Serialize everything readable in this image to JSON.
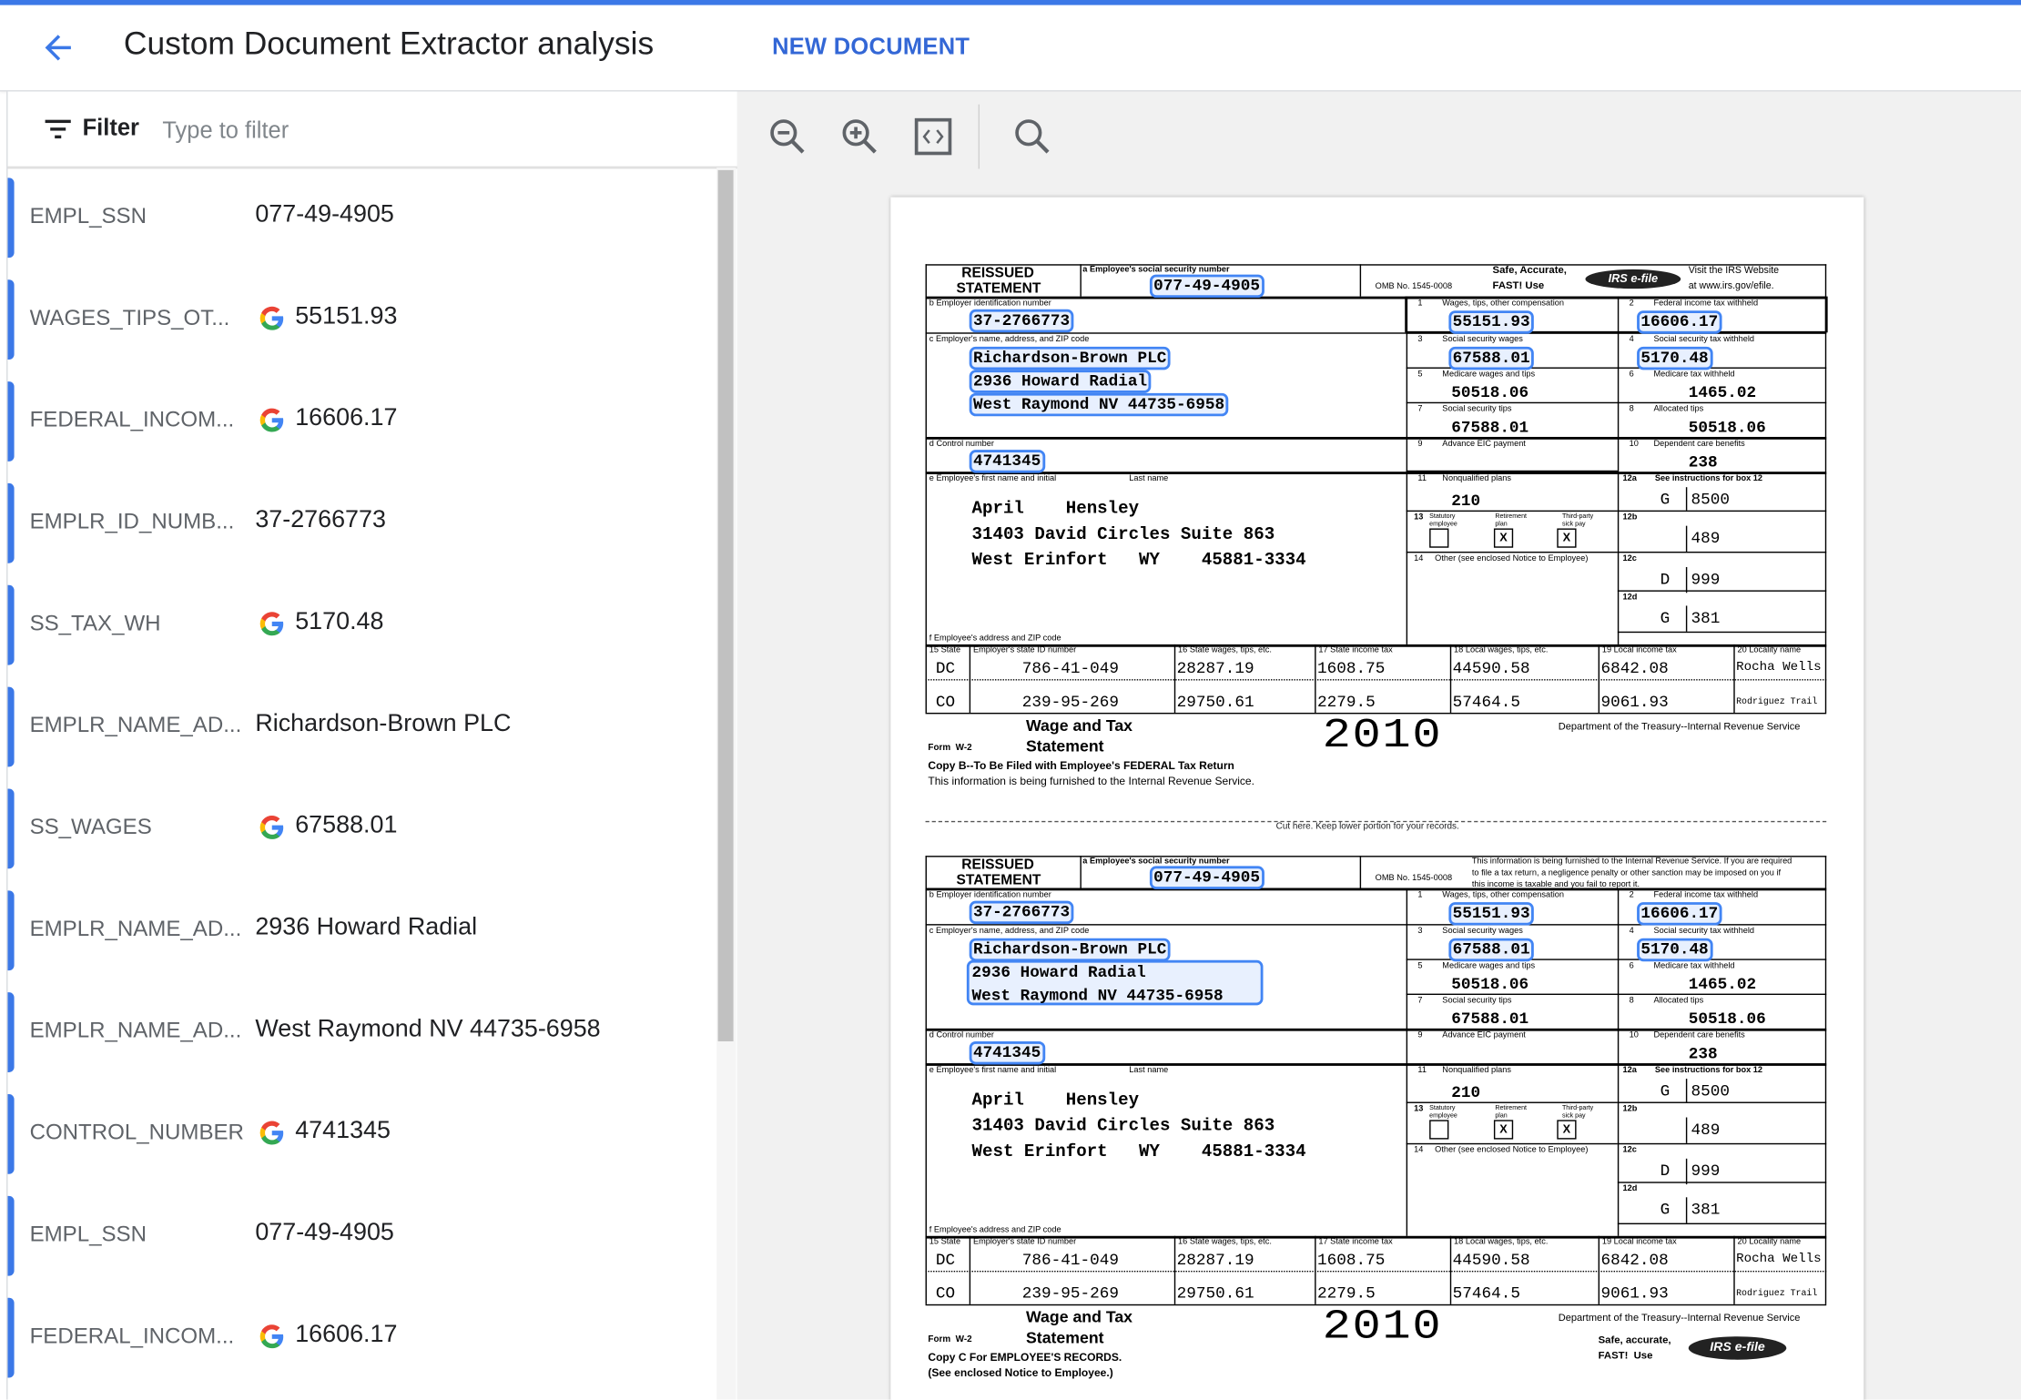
{
  "header": {
    "title": "Custom Document Extractor analysis",
    "new_document_label": "NEW DOCUMENT"
  },
  "filter": {
    "label": "Filter",
    "placeholder": "Type to filter",
    "value": ""
  },
  "colors": {
    "accent": "#3b78e7",
    "link": "#3367d6",
    "highlight_border": "#4285f4",
    "highlight_fill": "#e8f0fe"
  },
  "entities": [
    {
      "label": "EMPL_SSN",
      "value": "077-49-4905",
      "google_icon": false
    },
    {
      "label": "WAGES_TIPS_OT...",
      "value": "55151.93",
      "google_icon": true
    },
    {
      "label": "FEDERAL_INCOM...",
      "value": "16606.17",
      "google_icon": true
    },
    {
      "label": "EMPLR_ID_NUMB...",
      "value": "37-2766773",
      "google_icon": false
    },
    {
      "label": "SS_TAX_WH",
      "value": "5170.48",
      "google_icon": true
    },
    {
      "label": "EMPLR_NAME_AD...",
      "value": "Richardson-Brown PLC",
      "google_icon": false
    },
    {
      "label": "SS_WAGES",
      "value": "67588.01",
      "google_icon": true
    },
    {
      "label": "EMPLR_NAME_AD...",
      "value": "2936 Howard Radial",
      "google_icon": false
    },
    {
      "label": "EMPLR_NAME_AD...",
      "value": "West Raymond NV 44735-6958",
      "google_icon": false
    },
    {
      "label": "CONTROL_NUMBER",
      "value": "4741345",
      "google_icon": true
    },
    {
      "label": "EMPL_SSN",
      "value": "077-49-4905",
      "google_icon": false
    },
    {
      "label": "FEDERAL_INCOM...",
      "value": "16606.17",
      "google_icon": true
    }
  ],
  "toolbar": {
    "icons": [
      "zoom-out-icon",
      "zoom-in-icon",
      "fit-page-icon",
      "search-icon"
    ]
  },
  "form": {
    "reissued_1": "REISSUED",
    "reissued_2": "STATEMENT",
    "ssn_label": "a  Employee's social security number",
    "ssn": "077-49-4905",
    "omb": "OMB No. 1545-0008",
    "safe": "Safe, Accurate,",
    "fast": "FAST!  Use",
    "efile_logo": "IRS e-file",
    "visit_1": "Visit the IRS Website",
    "visit_2": "at www.irs.gov/efile.",
    "notice": [
      "This information is being furnished to the Internal Revenue Service.  If you are required",
      "to file a tax return, a negligence penalty or other sanction may be imposed on you if",
      "this income is taxable and you fail to report it."
    ],
    "b_label": "b  Employer identification number",
    "ein": "37-2766773",
    "c_label": "c  Employer's name, address, and ZIP code",
    "employer": [
      "Richardson-Brown PLC",
      "2936 Howard Radial",
      "West Raymond   NV    44735-6958"
    ],
    "d_label": "d  Control number",
    "control": "4741345",
    "e_label": "e  Employee's first name and initial",
    "last_name_label": "Last name",
    "employee": [
      "April    Hensley",
      "31403 David Circles Suite 863",
      "West Erinfort   WY    45881-3334"
    ],
    "f_label": "f  Employee's address and ZIP code",
    "boxes": [
      {
        "num": "1",
        "label": "Wages, tips, other compensation",
        "value": "55151.93"
      },
      {
        "num": "2",
        "label": "Federal income tax withheld",
        "value": "16606.17"
      },
      {
        "num": "3",
        "label": "Social security wages",
        "value": "67588.01"
      },
      {
        "num": "4",
        "label": "Social security tax withheld",
        "value": "5170.48"
      },
      {
        "num": "5",
        "label": "Medicare wages and tips",
        "value": "50518.06"
      },
      {
        "num": "6",
        "label": "Medicare tax withheld",
        "value": "1465.02"
      },
      {
        "num": "7",
        "label": "Social security tips",
        "value": "67588.01"
      },
      {
        "num": "8",
        "label": "Allocated tips",
        "value": "50518.06"
      },
      {
        "num": "9",
        "label": "Advance EIC payment",
        "value": ""
      },
      {
        "num": "10",
        "label": "Dependent care benefits",
        "value": "238"
      },
      {
        "num": "11",
        "label": "Nonqualified plans",
        "value": "210"
      }
    ],
    "box12": [
      {
        "num": "12a",
        "title": "See instructions for box 12",
        "code": "G",
        "value": "8500"
      },
      {
        "num": "12b",
        "title": "",
        "code": "",
        "value": "489"
      },
      {
        "num": "12c",
        "title": "",
        "code": "D",
        "value": "999"
      },
      {
        "num": "12d",
        "title": "",
        "code": "G",
        "value": "381"
      }
    ],
    "box13": {
      "num": "13",
      "labels": [
        "Statutory employee",
        "Retirement plan",
        "Third-party sick pay"
      ],
      "checks": [
        "",
        "X",
        "X"
      ]
    },
    "box14_label": "14     Other (see enclosed Notice to Employee)",
    "state_headers": [
      "15  State",
      "Employer's state ID number",
      "16  State wages, tips, etc.",
      "17  State income tax",
      "18  Local wages, tips, etc.",
      "19  Local income tax",
      "20  Locality name"
    ],
    "state_rows": [
      [
        "DC",
        "786-41-049",
        "28287.19",
        "1608.75",
        "44590.58",
        "6842.08",
        "Rocha Wells"
      ],
      [
        "CO",
        "239-95-269",
        "29750.61",
        "2279.5",
        "57464.5",
        "9061.93",
        "Rodriguez Trail"
      ]
    ],
    "wage_and_tax": "Wage and Tax",
    "statement": "Statement",
    "year": "2010",
    "form_name": "Form  W-2",
    "dept": "Department of the Treasury--Internal Revenue Service"
  },
  "copies": [
    {
      "line_1": "Copy B--To Be Filed with Employee's FEDERAL Tax Return",
      "line_2": "This information is being furnished to the Internal Revenue Service."
    },
    {
      "line_1": "Copy C For EMPLOYEE'S RECORDS.",
      "line_2": "(See enclosed Notice to Employee.)",
      "safe": "Safe, accurate,",
      "fast": "FAST!  Use"
    }
  ],
  "cut_text": "Cut here.  Keep lower portion for your records."
}
